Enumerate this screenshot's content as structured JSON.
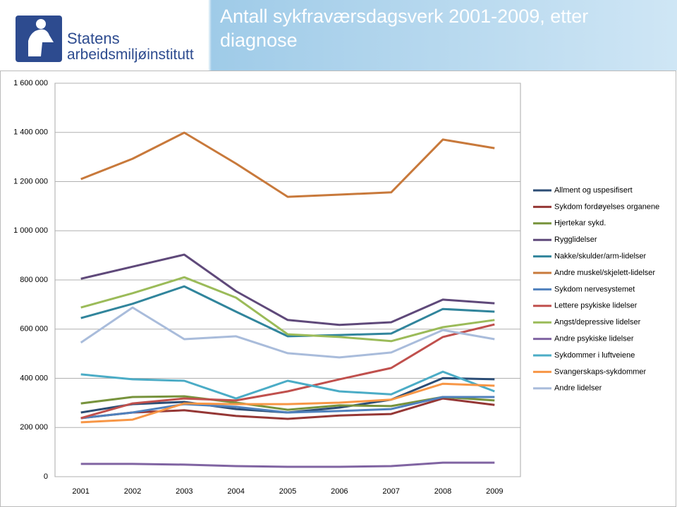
{
  "logo": {
    "line1": "Statens",
    "line2": "arbeidsmiljøinstitutt"
  },
  "chart_data": {
    "type": "line",
    "title": "Antall sykfraværsdagsverk 2001-2009, etter diagnose",
    "categories": [
      "2001",
      "2002",
      "2003",
      "2004",
      "2005",
      "2006",
      "2007",
      "2008",
      "2009"
    ],
    "ylim": [
      0,
      1600000
    ],
    "yticks": [
      0,
      {
        "value": 200000,
        "label": "200 000"
      },
      {
        "value": 400000,
        "label": "400 000"
      },
      {
        "value": 600000,
        "label": "600 000"
      },
      {
        "value": 800000,
        "label": "800 000"
      },
      {
        "value": 1000000,
        "label": "1 000 000"
      },
      {
        "value": 1200000,
        "label": "1 200 000"
      },
      {
        "value": 1400000,
        "label": "1 400 000"
      },
      {
        "value": 1600000,
        "label": "1 600 000"
      }
    ],
    "grid": true,
    "legend": "right",
    "series": [
      {
        "name": "Allment og uspesifisert",
        "color": "#2c4d75",
        "values": [
          261000,
          295000,
          304000,
          275000,
          261000,
          281000,
          313000,
          401000,
          396000
        ]
      },
      {
        "name": "Sykdom fordøyelses organene",
        "color": "#953735",
        "values": [
          238000,
          261000,
          270000,
          247000,
          235000,
          249000,
          255000,
          318000,
          292000
        ]
      },
      {
        "name": "Hjertekar sykd.",
        "color": "#77933c",
        "values": [
          298000,
          324000,
          327000,
          301000,
          272000,
          290000,
          287000,
          324000,
          310000
        ]
      },
      {
        "name": "Rygglidelser",
        "color": "#5f497a",
        "values": [
          805000,
          854000,
          903000,
          754000,
          637000,
          617000,
          628000,
          720000,
          705000
        ]
      },
      {
        "name": "Nakke/skulder/arm-lidelser",
        "color": "#31859c",
        "values": [
          645000,
          703000,
          774000,
          671000,
          571000,
          576000,
          582000,
          682000,
          671000
        ]
      },
      {
        "name": "Andre muskel/skjelett-lidelser",
        "color": "#c8793b",
        "values": [
          1210000,
          1293000,
          1399000,
          1273000,
          1138000,
          1147000,
          1156000,
          1371000,
          1336000
        ]
      },
      {
        "name": "Sykdom nervesystemet",
        "color": "#4f81bd",
        "values": [
          238000,
          261000,
          295000,
          284000,
          261000,
          267000,
          275000,
          324000,
          324000
        ]
      },
      {
        "name": "Lettere psykiske lidelser",
        "color": "#c0504d",
        "values": [
          238000,
          298000,
          318000,
          310000,
          347000,
          396000,
          442000,
          568000,
          619000
        ]
      },
      {
        "name": "Angst/depressive lidelser",
        "color": "#9bbb59",
        "values": [
          688000,
          746000,
          811000,
          728000,
          579000,
          568000,
          551000,
          608000,
          637000
        ]
      },
      {
        "name": "Andre psykiske lidelser",
        "color": "#8064a2",
        "values": [
          52000,
          52000,
          49000,
          43000,
          40000,
          40000,
          43000,
          57000,
          57000
        ]
      },
      {
        "name": "Sykdommer i luftveiene",
        "color": "#4bacc6",
        "values": [
          416000,
          396000,
          390000,
          318000,
          390000,
          347000,
          335000,
          427000,
          347000
        ]
      },
      {
        "name": "Svangerskaps-sykdommer",
        "color": "#f79646",
        "values": [
          221000,
          232000,
          298000,
          295000,
          295000,
          301000,
          313000,
          378000,
          370000
        ]
      },
      {
        "name": "Andre lidelser",
        "color": "#a9bcdb",
        "values": [
          545000,
          688000,
          559000,
          571000,
          502000,
          485000,
          505000,
          596000,
          559000
        ]
      }
    ]
  }
}
